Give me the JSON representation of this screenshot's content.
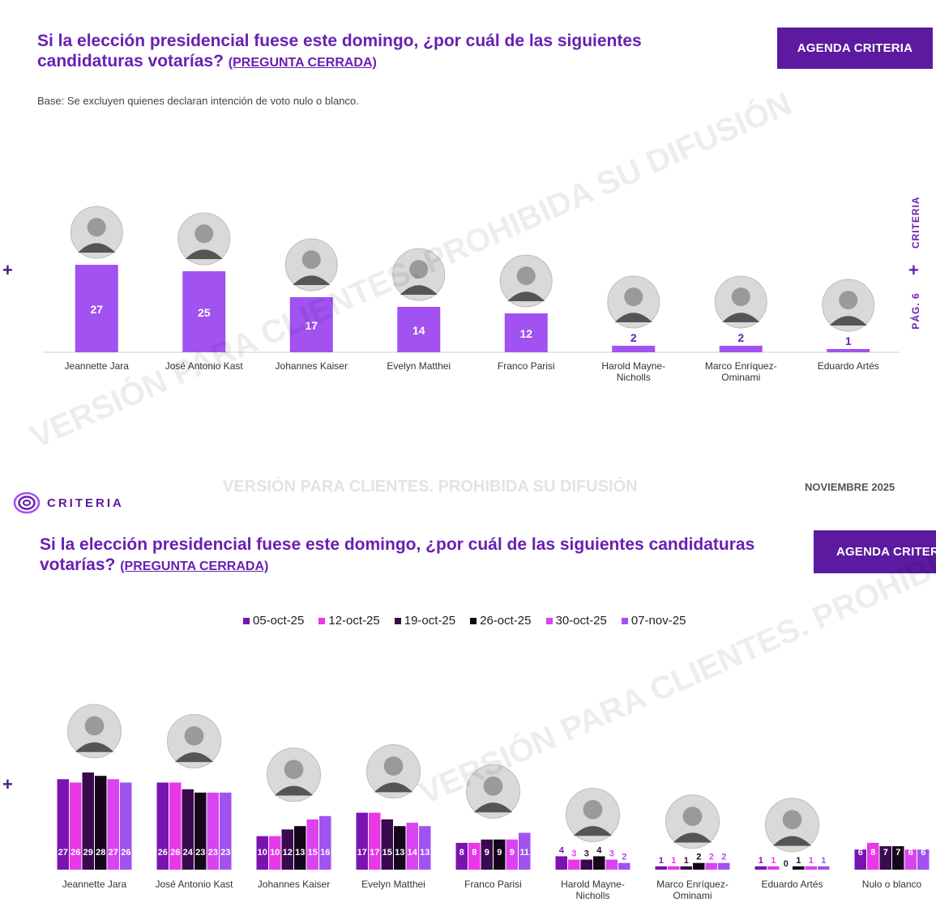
{
  "panel1": {
    "title": "Si la elección presidencial fuese este domingo, ¿por cuál de las siguientes candidaturas votarías?",
    "question_tag": "(PREGUNTA CERRADA)",
    "agenda": "AGENDA CRITERIA",
    "base": "Base: Se excluyen quienes declaran intención de voto nulo o blanco.",
    "side_brand": "CRITERIA",
    "side_page": "PÁG. 6",
    "watermark": "VERSIÓN PARA CLIENTES. PROHIBIDA SU DIFUSIÓN",
    "footer_watermark": "VERSIÓN PARA CLIENTES. PROHIBIDA SU DIFUSIÓN",
    "footer_date": "NOVIEMBRE 2025",
    "logo_text": "CRITERIA"
  },
  "panel2": {
    "title": "Si la elección presidencial fuese este domingo, ¿por cuál de las siguientes candidaturas votarías?",
    "question_tag": "(PREGUNTA CERRADA)",
    "agenda": "AGENDA CRITERIA",
    "watermark": "VERSIÓN PARA CLIENTES. PROHIBIDA SU DIFUSIÓN"
  },
  "colors": {
    "accent": "#6a1fb3",
    "bar": "#a152f0",
    "agenda_bg": "#5b1a9f"
  },
  "chart_data": [
    {
      "type": "bar",
      "categories": [
        "Jeannette Jara",
        "José Antonio Kast",
        "Johannes Kaiser",
        "Evelyn Matthei",
        "Franco Parisi",
        "Harold Mayne-Nicholls",
        "Marco Enríquez-Ominami",
        "Eduardo Artés"
      ],
      "values": [
        27,
        25,
        17,
        14,
        12,
        2,
        2,
        1
      ],
      "ylim": [
        0,
        27
      ]
    },
    {
      "type": "bar",
      "categories": [
        "Jeannette Jara",
        "José Antonio Kast",
        "Johannes Kaiser",
        "Evelyn Matthei",
        "Franco Parisi",
        "Harold Mayne-Nicholls",
        "Marco Enríquez-Ominami",
        "Eduardo Artés",
        "Nulo o blanco"
      ],
      "series": [
        {
          "name": "05-oct-25",
          "color": "#7a14b0",
          "values": [
            27,
            26,
            10,
            17,
            8,
            4,
            1,
            1,
            6
          ]
        },
        {
          "name": "12-oct-25",
          "color": "#e838e8",
          "values": [
            26,
            26,
            10,
            17,
            8,
            3,
            1,
            1,
            8
          ]
        },
        {
          "name": "19-oct-25",
          "color": "#3a0a4e",
          "values": [
            29,
            24,
            12,
            15,
            9,
            3,
            1,
            0,
            7
          ]
        },
        {
          "name": "26-oct-25",
          "color": "#16061c",
          "values": [
            28,
            23,
            13,
            13,
            9,
            4,
            2,
            1,
            7
          ]
        },
        {
          "name": "30-oct-25",
          "color": "#d944f0",
          "values": [
            27,
            23,
            15,
            14,
            9,
            3,
            2,
            1,
            6
          ]
        },
        {
          "name": "07-nov-25",
          "color": "#a152f0",
          "values": [
            26,
            23,
            16,
            13,
            11,
            2,
            2,
            1,
            6
          ]
        }
      ],
      "ylim": [
        0,
        29
      ]
    }
  ]
}
